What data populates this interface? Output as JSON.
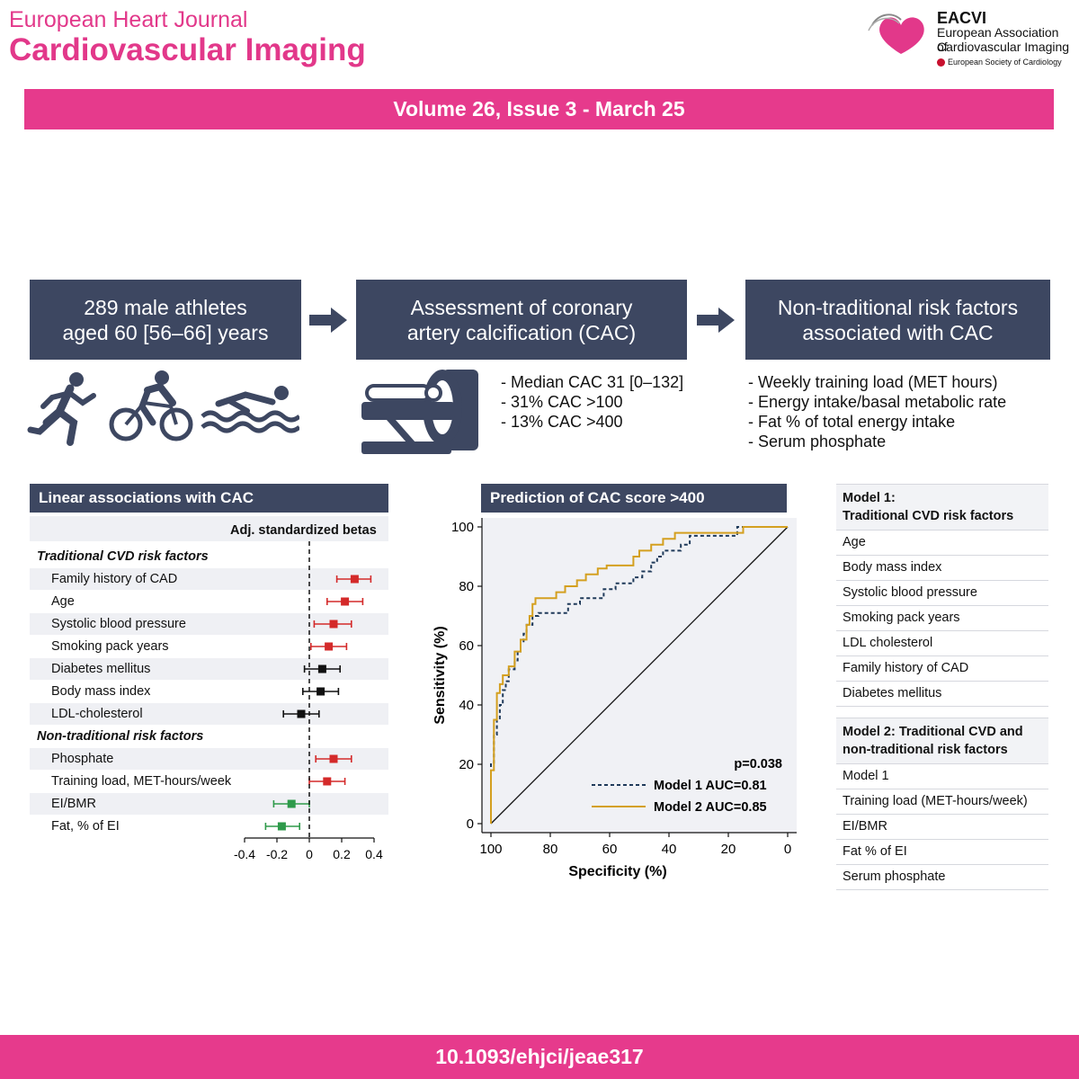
{
  "journal": {
    "line1": "European Heart Journal",
    "line2": "Cardiovascular Imaging"
  },
  "logo": {
    "name": "EACVI",
    "sub1": "European Association of",
    "sub2": "Cardiovascular Imaging",
    "esc": "European Society of Cardiology",
    "heart_color": "#e2388a"
  },
  "issue": "Volume 26, Issue 3 - March 25",
  "doi": "10.1093/ehjci/jeae317",
  "flow": [
    {
      "line1": "289 male athletes",
      "line2": "aged 60 [56–66] years"
    },
    {
      "line1": "Assessment of coronary",
      "line2": "artery calcification (CAC)"
    },
    {
      "line1": "Non-traditional risk factors",
      "line2": "associated with CAC"
    }
  ],
  "icons": [
    "runner-icon",
    "cyclist-icon",
    "swimmer-icon",
    "ct-scanner-icon"
  ],
  "cac_stats": [
    "- Median CAC 31 [0–132]",
    "- 31% CAC >100",
    "- 13% CAC >400"
  ],
  "nontrad_list": [
    "- Weekly training load (MET hours)",
    "- Energy intake/basal metabolic rate",
    "- Fat % of total energy intake",
    "- Serum phosphate"
  ],
  "chart_data": [
    {
      "type": "forest",
      "title": "Linear associations with CAC",
      "column_header": "Adj. standardized betas",
      "xlim": [
        -0.4,
        0.4
      ],
      "xticks": [
        "-0.4",
        "-0.2",
        "0",
        "0.2",
        "0.4"
      ],
      "colors": {
        "positive": "#d42a2a",
        "neutral": "#111111",
        "negative": "#2e9a4a"
      },
      "groups": [
        {
          "label": "Traditional CVD risk factors",
          "rows": [
            {
              "label": "Family history of CAD",
              "beta": 0.28,
              "lo": 0.17,
              "hi": 0.38,
              "color": "positive"
            },
            {
              "label": "Age",
              "beta": 0.22,
              "lo": 0.11,
              "hi": 0.33,
              "color": "positive"
            },
            {
              "label": "Systolic blood pressure",
              "beta": 0.15,
              "lo": 0.03,
              "hi": 0.26,
              "color": "positive"
            },
            {
              "label": "Smoking pack years",
              "beta": 0.12,
              "lo": 0.01,
              "hi": 0.23,
              "color": "positive"
            },
            {
              "label": "Diabetes mellitus",
              "beta": 0.08,
              "lo": -0.03,
              "hi": 0.19,
              "color": "neutral"
            },
            {
              "label": "Body mass index",
              "beta": 0.07,
              "lo": -0.04,
              "hi": 0.18,
              "color": "neutral"
            },
            {
              "label": "LDL-cholesterol",
              "beta": -0.05,
              "lo": -0.16,
              "hi": 0.06,
              "color": "neutral"
            }
          ]
        },
        {
          "label": "Non-traditional risk factors",
          "rows": [
            {
              "label": "Phosphate",
              "beta": 0.15,
              "lo": 0.04,
              "hi": 0.26,
              "color": "positive"
            },
            {
              "label": "Training load, MET-hours/week",
              "beta": 0.11,
              "lo": 0.0,
              "hi": 0.22,
              "color": "positive"
            },
            {
              "label": "EI/BMR",
              "beta": -0.11,
              "lo": -0.22,
              "hi": 0.0,
              "color": "negative"
            },
            {
              "label": "Fat, % of EI",
              "beta": -0.17,
              "lo": -0.27,
              "hi": -0.06,
              "color": "negative"
            }
          ]
        }
      ]
    },
    {
      "type": "line",
      "title": "Prediction of CAC score >400",
      "xlabel": "Specificity (%)",
      "ylabel": "Sensitivity (%)",
      "xlim": [
        100,
        0
      ],
      "ylim": [
        0,
        100
      ],
      "xticks": [
        100,
        80,
        60,
        40,
        20,
        0
      ],
      "yticks": [
        0,
        20,
        40,
        60,
        80,
        100
      ],
      "annotation": "p=0.038",
      "series": [
        {
          "name": "Model 1 AUC=0.81",
          "style": "dashed",
          "color": "#1f3a5a",
          "points": [
            [
              100,
              0
            ],
            [
              100,
              20
            ],
            [
              99,
              20
            ],
            [
              99,
              30
            ],
            [
              98,
              30
            ],
            [
              98,
              35
            ],
            [
              97,
              35
            ],
            [
              97,
              40
            ],
            [
              96,
              40
            ],
            [
              96,
              45
            ],
            [
              95,
              45
            ],
            [
              95,
              48
            ],
            [
              94,
              48
            ],
            [
              94,
              52
            ],
            [
              92,
              52
            ],
            [
              92,
              55
            ],
            [
              91,
              55
            ],
            [
              91,
              58
            ],
            [
              90,
              58
            ],
            [
              90,
              61
            ],
            [
              89,
              61
            ],
            [
              89,
              64
            ],
            [
              88,
              64
            ],
            [
              88,
              67
            ],
            [
              86,
              67
            ],
            [
              86,
              70
            ],
            [
              84,
              70
            ],
            [
              84,
              71
            ],
            [
              74,
              71
            ],
            [
              74,
              74
            ],
            [
              70,
              74
            ],
            [
              70,
              76
            ],
            [
              62,
              76
            ],
            [
              62,
              79
            ],
            [
              58,
              79
            ],
            [
              58,
              81
            ],
            [
              52,
              81
            ],
            [
              52,
              83
            ],
            [
              49,
              83
            ],
            [
              49,
              85
            ],
            [
              46,
              85
            ],
            [
              46,
              88
            ],
            [
              44,
              88
            ],
            [
              44,
              90
            ],
            [
              42,
              90
            ],
            [
              42,
              92
            ],
            [
              36,
              92
            ],
            [
              36,
              94
            ],
            [
              33,
              94
            ],
            [
              33,
              97
            ],
            [
              17,
              97
            ],
            [
              17,
              100
            ],
            [
              0,
              100
            ]
          ]
        },
        {
          "name": "Model 2 AUC=0.85",
          "style": "solid",
          "color": "#d4a020",
          "points": [
            [
              100,
              0
            ],
            [
              100,
              18
            ],
            [
              99,
              18
            ],
            [
              99,
              35
            ],
            [
              98,
              35
            ],
            [
              98,
              44
            ],
            [
              97,
              44
            ],
            [
              97,
              47
            ],
            [
              96,
              47
            ],
            [
              96,
              50
            ],
            [
              94,
              50
            ],
            [
              94,
              53
            ],
            [
              92,
              53
            ],
            [
              92,
              58
            ],
            [
              90,
              58
            ],
            [
              90,
              62
            ],
            [
              88,
              62
            ],
            [
              88,
              67
            ],
            [
              87,
              67
            ],
            [
              87,
              70
            ],
            [
              86,
              70
            ],
            [
              86,
              74
            ],
            [
              85,
              74
            ],
            [
              85,
              76
            ],
            [
              78,
              76
            ],
            [
              78,
              78
            ],
            [
              75,
              78
            ],
            [
              75,
              80
            ],
            [
              71,
              80
            ],
            [
              71,
              82
            ],
            [
              68,
              82
            ],
            [
              68,
              84
            ],
            [
              64,
              84
            ],
            [
              64,
              86
            ],
            [
              61,
              86
            ],
            [
              61,
              87
            ],
            [
              52,
              87
            ],
            [
              52,
              90
            ],
            [
              50,
              90
            ],
            [
              50,
              92
            ],
            [
              46,
              92
            ],
            [
              46,
              94
            ],
            [
              42,
              94
            ],
            [
              42,
              96
            ],
            [
              38,
              96
            ],
            [
              38,
              98
            ],
            [
              15,
              98
            ],
            [
              15,
              100
            ],
            [
              0,
              100
            ]
          ]
        }
      ]
    }
  ],
  "models": [
    {
      "title": "Model 1:\nTraditional CVD risk factors",
      "items": [
        "Age",
        "Body mass index",
        "Systolic blood pressure",
        "Smoking pack years",
        "LDL cholesterol",
        "Family history of CAD",
        "Diabetes mellitus"
      ]
    },
    {
      "title": "Model 2: Traditional CVD and non-traditional risk factors",
      "items": [
        "Model 1",
        "Training load (MET-hours/week)",
        "EI/BMR",
        "Fat % of EI",
        "Serum phosphate"
      ]
    }
  ]
}
